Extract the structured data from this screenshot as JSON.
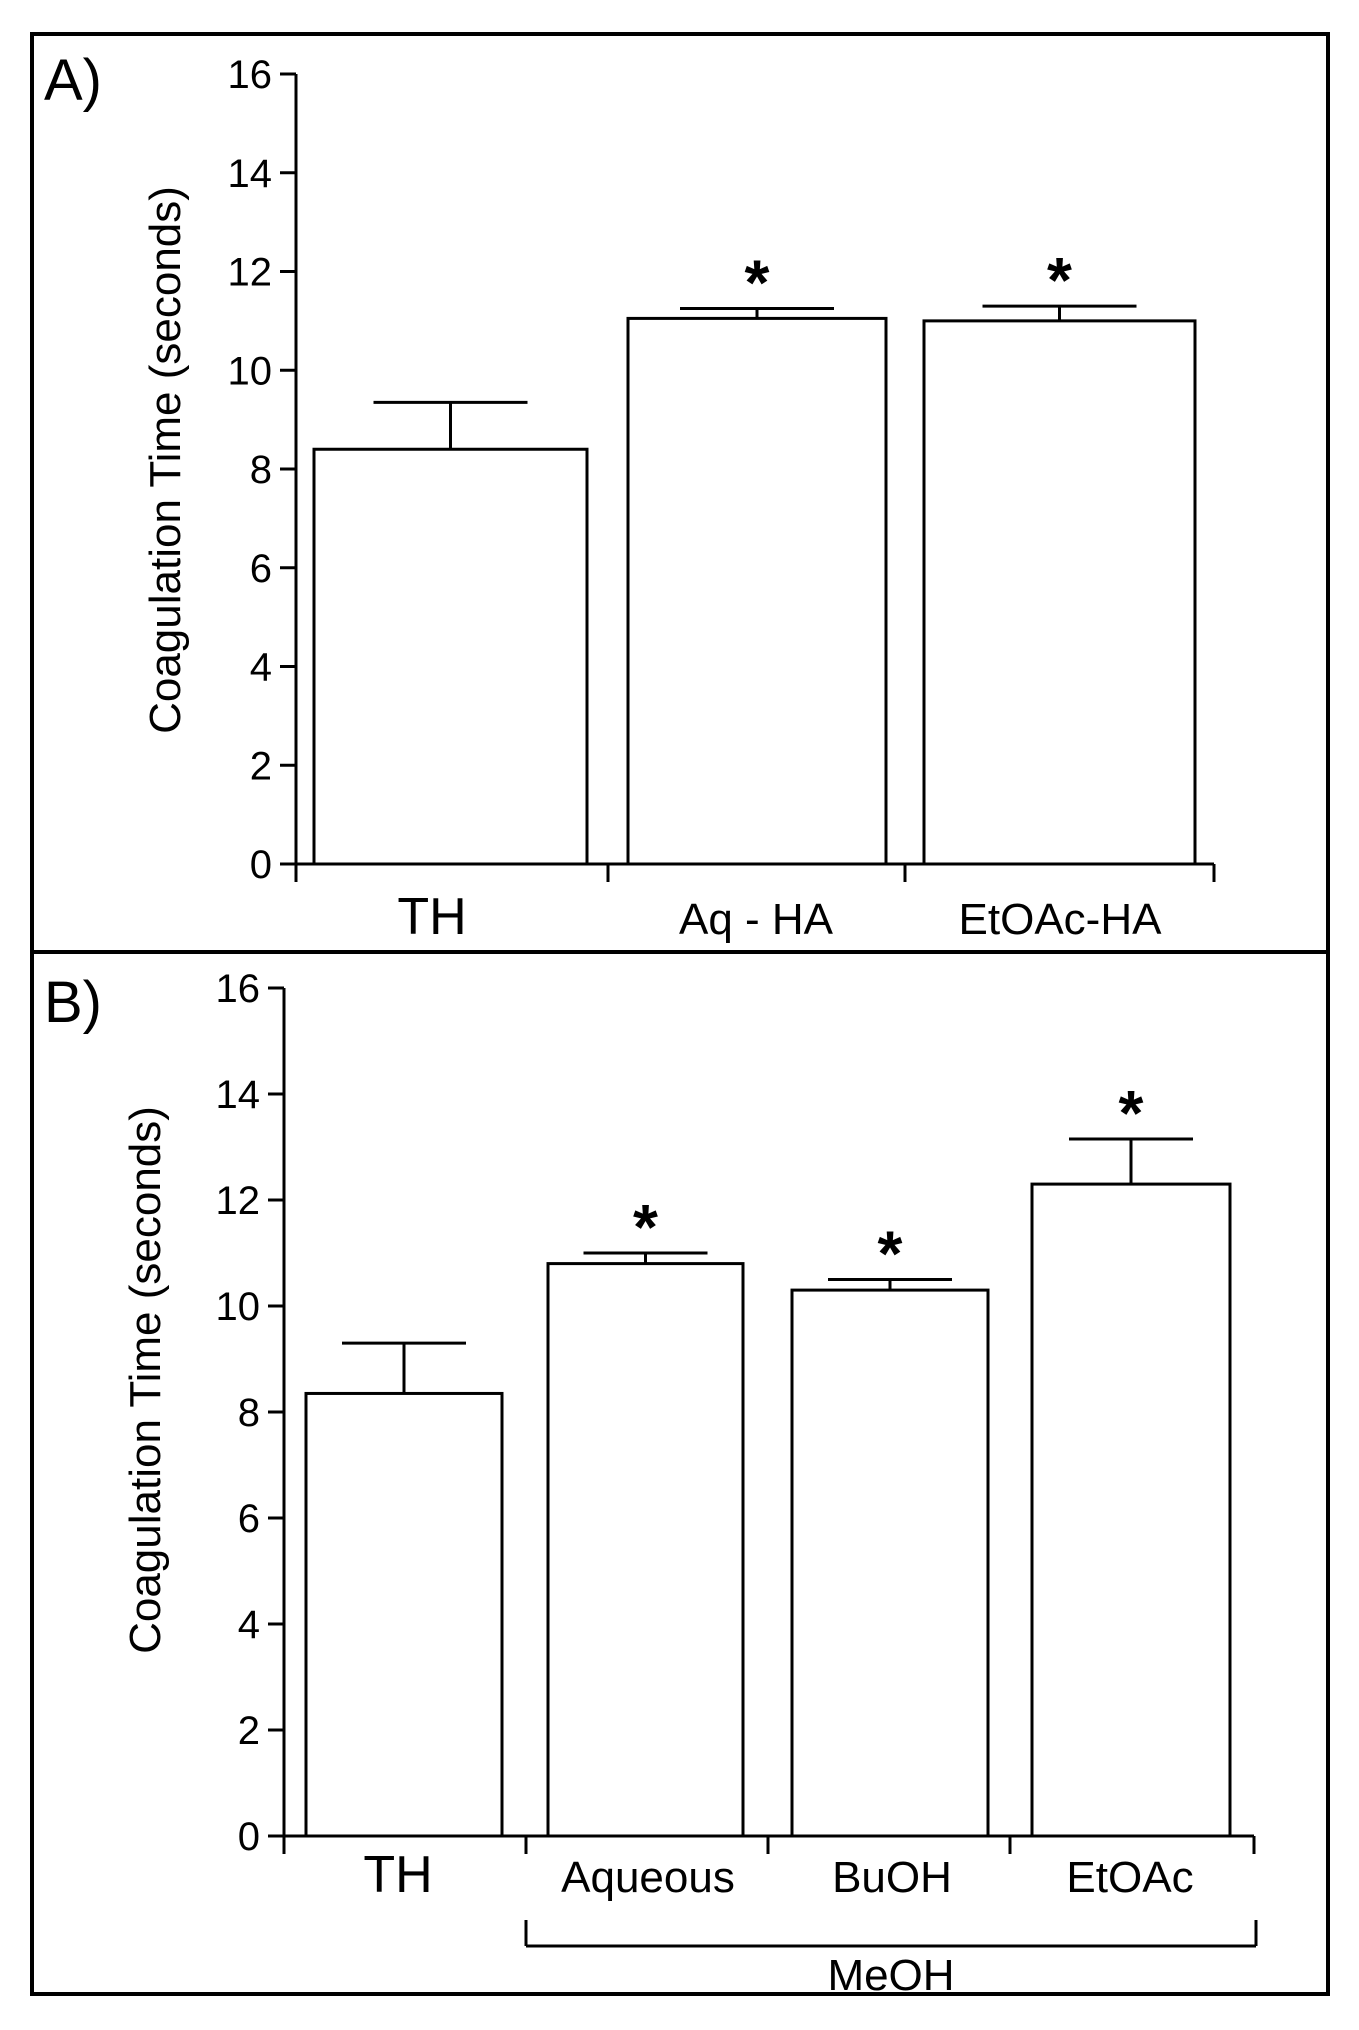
{
  "chart_data": [
    {
      "type": "bar",
      "panel_label": "A)",
      "ylabel": "Coagulation Time (seconds)",
      "ylim": [
        0,
        16
      ],
      "yticks": [
        "0",
        "2",
        "4",
        "6",
        "8",
        "10",
        "12",
        "14",
        "16"
      ],
      "categories": [
        "TH",
        "Aq - HA",
        "EtOAc-HA"
      ],
      "values": [
        8.4,
        11.05,
        11.0
      ],
      "errors": [
        0.95,
        0.2,
        0.3
      ],
      "significance": [
        "",
        "*",
        "*"
      ]
    },
    {
      "type": "bar",
      "panel_label": "B)",
      "ylabel": "Coagulation Time (seconds)",
      "ylim": [
        0,
        16
      ],
      "yticks": [
        "0",
        "2",
        "4",
        "6",
        "8",
        "10",
        "12",
        "14",
        "16"
      ],
      "categories": [
        "TH",
        "Aqueous",
        "BuOH",
        "EtOAc"
      ],
      "values": [
        8.35,
        10.8,
        10.3,
        12.3
      ],
      "errors": [
        0.95,
        0.2,
        0.2,
        0.85
      ],
      "significance": [
        "",
        "*",
        "*",
        "*"
      ],
      "group_label": "MeOH"
    }
  ]
}
